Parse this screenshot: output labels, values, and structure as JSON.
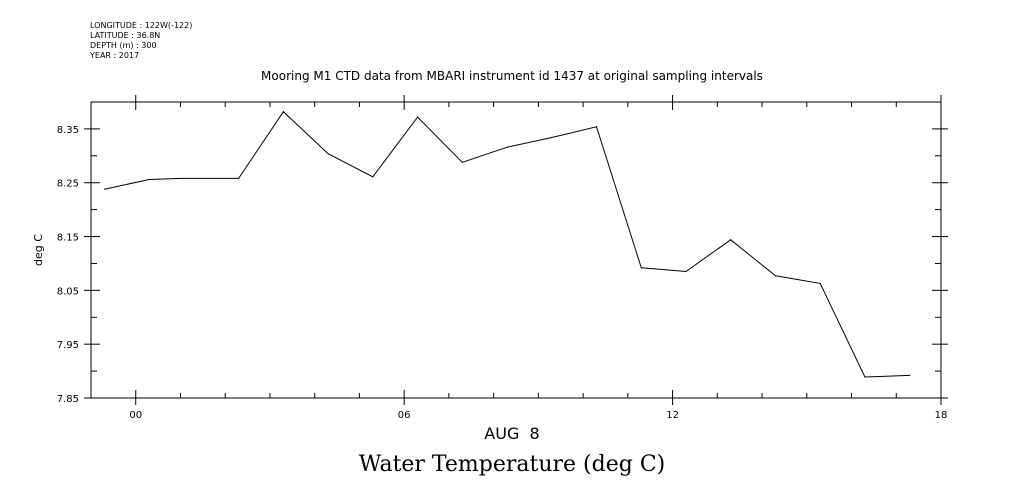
{
  "header": {
    "longitude": "LONGITUDE : 122W(-122)",
    "latitude": "LATITUDE : 36.8N",
    "depth": "DEPTH (m) : 300",
    "year": "YEAR : 2017"
  },
  "footer_title": "Water Temperature (deg C)",
  "colors": {
    "line": "#000000",
    "background": "#ffffff"
  },
  "chart_data": {
    "type": "line",
    "title": "Mooring M1 CTD data from MBARI instrument id 1437 at original sampling intervals",
    "xlabel": "AUG  8",
    "ylabel": "deg C",
    "xlim": [
      -1,
      18
    ],
    "ylim": [
      7.85,
      8.4
    ],
    "x_ticks": [
      0,
      6,
      12,
      18
    ],
    "x_tick_labels": [
      "00",
      "06",
      "12",
      "18"
    ],
    "y_ticks": [
      7.85,
      7.95,
      8.05,
      8.15,
      8.25,
      8.35
    ],
    "y_tick_labels": [
      "7.85",
      "7.95",
      "8.05",
      "8.15",
      "8.25",
      "8.35"
    ],
    "series": [
      {
        "name": "Water Temperature",
        "x": [
          -0.7,
          0.3,
          1.0,
          2.3,
          3.3,
          4.3,
          5.3,
          6.3,
          7.3,
          8.3,
          9.3,
          10.3,
          11.3,
          12.3,
          13.3,
          14.3,
          15.3,
          16.3,
          17.3
        ],
        "y": [
          8.238,
          8.256,
          8.258,
          8.258,
          8.382,
          8.304,
          8.261,
          8.372,
          8.288,
          8.316,
          8.334,
          8.354,
          8.092,
          8.085,
          8.144,
          8.077,
          8.063,
          7.889,
          7.892
        ]
      }
    ]
  }
}
